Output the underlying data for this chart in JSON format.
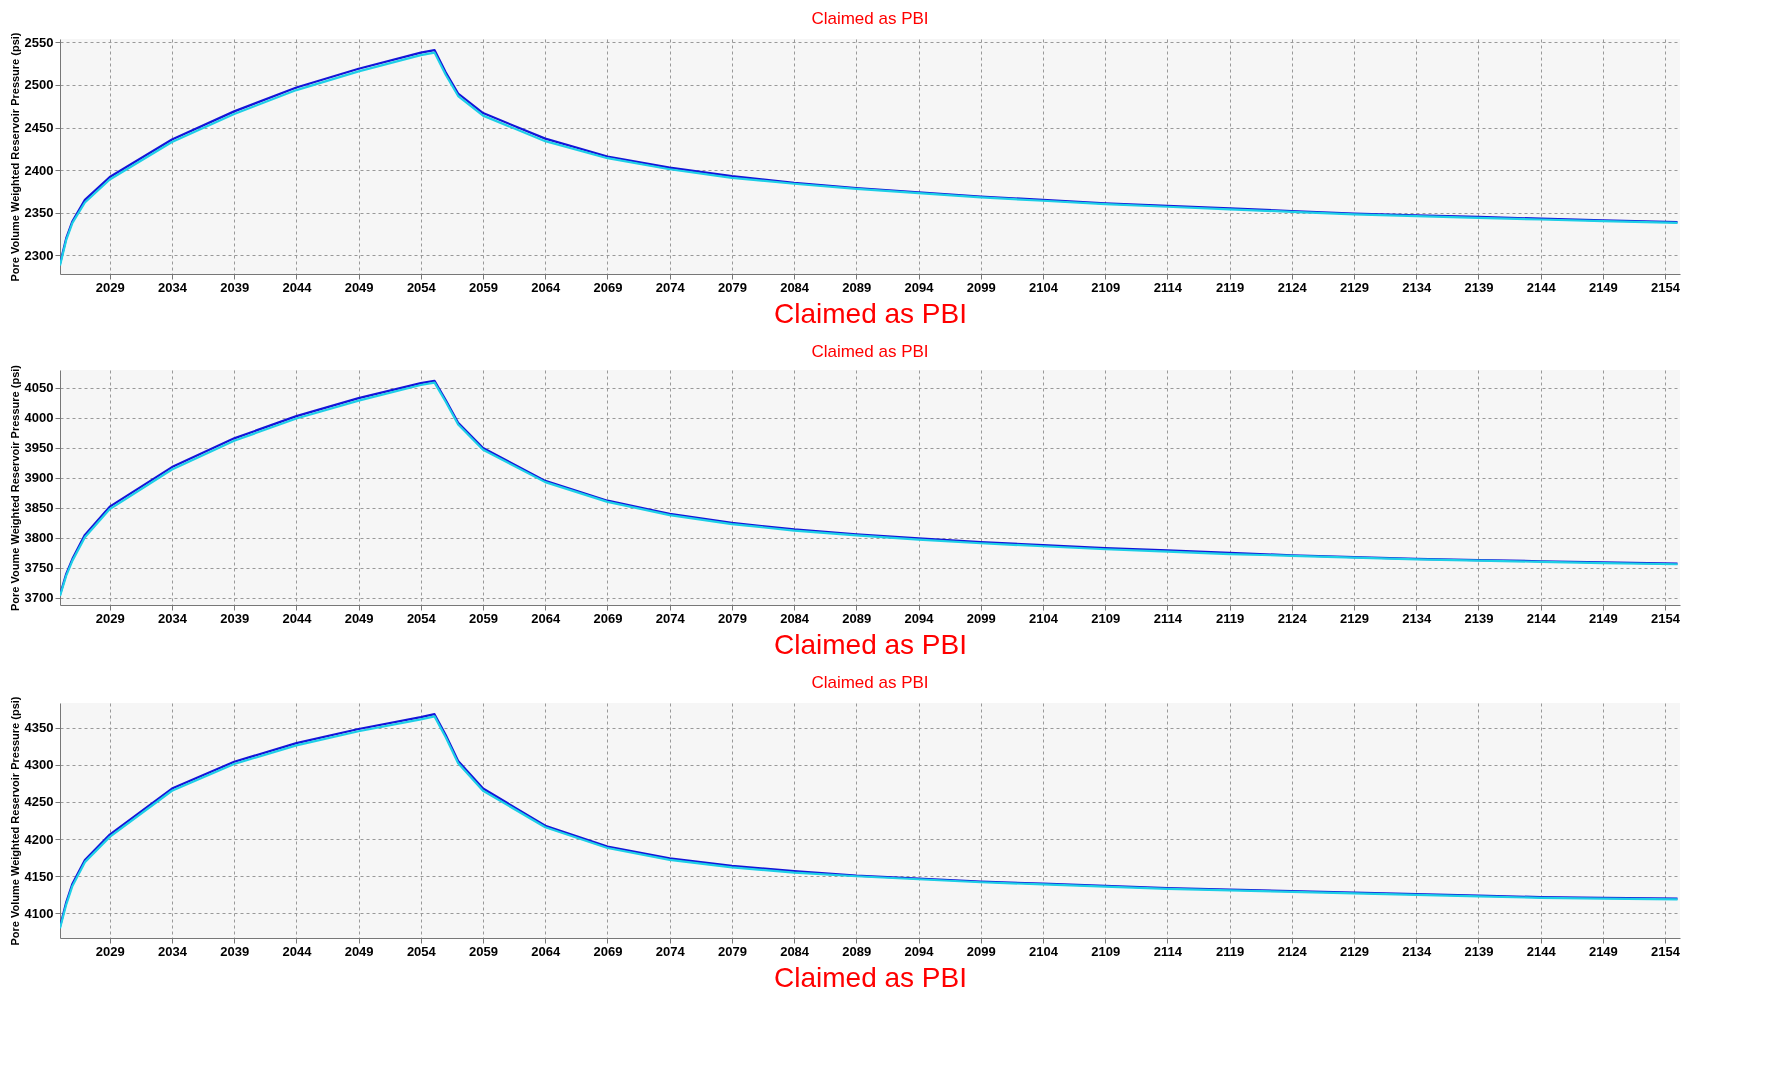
{
  "chart_data": [
    {
      "type": "line",
      "title": "Claimed as PBI",
      "annotations": [
        "Claimed as PBI"
      ],
      "ylabel": "Pore Volume Weighted Reservoir Pressure (psi)",
      "xlim": [
        2025,
        2155.2
      ],
      "xticks": [
        2029,
        2034,
        2039,
        2044,
        2049,
        2054,
        2059,
        2064,
        2069,
        2074,
        2079,
        2084,
        2089,
        2094,
        2099,
        2104,
        2109,
        2114,
        2119,
        2124,
        2129,
        2134,
        2139,
        2144,
        2149,
        2154
      ],
      "ylim": [
        2278,
        2554
      ],
      "yticks": [
        2300,
        2350,
        2400,
        2450,
        2500,
        2550
      ],
      "grid": true,
      "line_style": "solid",
      "x": [
        2025,
        2025.5,
        2026,
        2027,
        2029,
        2034,
        2039,
        2044,
        2049,
        2054,
        2055.1,
        2056,
        2057,
        2059,
        2064,
        2069,
        2074,
        2079,
        2084,
        2089,
        2094,
        2099,
        2104,
        2109,
        2114,
        2119,
        2124,
        2129,
        2134,
        2139,
        2144,
        2149,
        2155
      ],
      "series": [
        {
          "color": "#1414d8",
          "values": [
            2290,
            2320,
            2340,
            2365,
            2392,
            2436,
            2469,
            2497,
            2519,
            2538,
            2541,
            2515,
            2490,
            2467,
            2437,
            2416,
            2403,
            2393,
            2385,
            2379,
            2374,
            2369,
            2365,
            2361,
            2358,
            2355,
            2352,
            2349,
            2347,
            2345,
            2343,
            2341,
            2339
          ]
        },
        {
          "color": "#1ecfe6",
          "values": [
            2288,
            2318,
            2338,
            2362,
            2389,
            2433,
            2466,
            2494,
            2516,
            2535,
            2538,
            2512,
            2487,
            2464,
            2434,
            2414,
            2401,
            2391,
            2384,
            2378,
            2373,
            2368,
            2364,
            2360,
            2357,
            2354,
            2351,
            2348,
            2346,
            2344,
            2342,
            2340,
            2338
          ]
        }
      ]
    },
    {
      "type": "line",
      "title": "Claimed as PBI",
      "annotations": [
        "Claimed as PBI"
      ],
      "ylabel": "Pore Voume Weighted Reservoir Pressure (psi)",
      "xlim": [
        2025,
        2155.2
      ],
      "xticks": [
        2029,
        2034,
        2039,
        2044,
        2049,
        2054,
        2059,
        2064,
        2069,
        2074,
        2079,
        2084,
        2089,
        2094,
        2099,
        2104,
        2109,
        2114,
        2119,
        2124,
        2129,
        2134,
        2139,
        2144,
        2149,
        2154
      ],
      "ylim": [
        3688,
        4080
      ],
      "yticks": [
        3700,
        3750,
        3800,
        3850,
        3900,
        3950,
        4000,
        4050
      ],
      "grid": true,
      "line_style": "solid",
      "x": [
        2025,
        2025.5,
        2026,
        2027,
        2029,
        2034,
        2039,
        2044,
        2049,
        2054,
        2055.1,
        2056,
        2057,
        2059,
        2064,
        2069,
        2074,
        2079,
        2084,
        2089,
        2094,
        2099,
        2104,
        2109,
        2114,
        2119,
        2124,
        2129,
        2134,
        2139,
        2144,
        2149,
        2155
      ],
      "series": [
        {
          "color": "#1414d8",
          "values": [
            3705,
            3740,
            3765,
            3805,
            3852,
            3918,
            3966,
            4003,
            4033,
            4058,
            4062,
            4030,
            3992,
            3950,
            3895,
            3862,
            3840,
            3825,
            3814,
            3806,
            3799,
            3793,
            3788,
            3783,
            3779,
            3775,
            3771,
            3768,
            3765,
            3763,
            3761,
            3759,
            3757
          ]
        },
        {
          "color": "#1ecfe6",
          "values": [
            3703,
            3737,
            3762,
            3801,
            3848,
            3914,
            3962,
            3999,
            4029,
            4055,
            4059,
            4027,
            3989,
            3947,
            3893,
            3860,
            3838,
            3823,
            3812,
            3804,
            3797,
            3791,
            3786,
            3781,
            3777,
            3773,
            3770,
            3767,
            3764,
            3762,
            3760,
            3758,
            3756
          ]
        }
      ]
    },
    {
      "type": "line",
      "title": "Claimed as PBI",
      "annotations": [
        "Claimed as PBI"
      ],
      "ylabel": "Pore Volume Weighted Reservoir Pressure (psi)",
      "xlim": [
        2025,
        2155.2
      ],
      "xticks": [
        2029,
        2034,
        2039,
        2044,
        2049,
        2054,
        2059,
        2064,
        2069,
        2074,
        2079,
        2084,
        2089,
        2094,
        2099,
        2104,
        2109,
        2114,
        2119,
        2124,
        2129,
        2134,
        2139,
        2144,
        2149,
        2154
      ],
      "ylim": [
        4067,
        4383
      ],
      "yticks": [
        4100,
        4150,
        4200,
        4250,
        4300,
        4350
      ],
      "grid": true,
      "line_style": "solid",
      "x": [
        2025,
        2025.5,
        2026,
        2027,
        2029,
        2034,
        2039,
        2044,
        2049,
        2054,
        2055.1,
        2056,
        2057,
        2059,
        2064,
        2069,
        2074,
        2079,
        2084,
        2089,
        2094,
        2099,
        2104,
        2109,
        2114,
        2119,
        2124,
        2129,
        2134,
        2139,
        2144,
        2149,
        2155
      ],
      "series": [
        {
          "color": "#1414d8",
          "values": [
            4082,
            4115,
            4140,
            4172,
            4206,
            4268,
            4304,
            4329,
            4348,
            4364,
            4368,
            4340,
            4305,
            4268,
            4218,
            4190,
            4174,
            4164,
            4157,
            4151,
            4147,
            4143,
            4140,
            4137,
            4134,
            4132,
            4130,
            4128,
            4126,
            4124,
            4122,
            4121,
            4120
          ]
        },
        {
          "color": "#1ecfe6",
          "values": [
            4080,
            4112,
            4137,
            4169,
            4203,
            4265,
            4301,
            4326,
            4345,
            4361,
            4365,
            4337,
            4302,
            4265,
            4216,
            4188,
            4172,
            4162,
            4155,
            4150,
            4146,
            4142,
            4139,
            4136,
            4133,
            4131,
            4129,
            4127,
            4125,
            4123,
            4121,
            4120,
            4119
          ]
        }
      ]
    }
  ]
}
